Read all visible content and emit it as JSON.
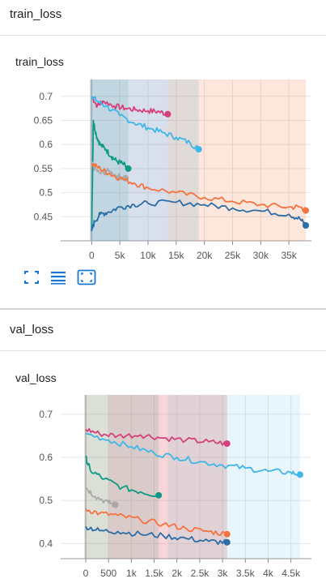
{
  "colors": {
    "orange": "#F4733F",
    "blue": "#2D6DA6",
    "pink": "#D6407A",
    "cyan": "#3FB7E6",
    "teal": "#0E9A85",
    "gray": "#A9A9A9"
  },
  "section_train": {
    "header_title": "train_loss",
    "card_title": "train_loss",
    "toolbar": {
      "fit_icon": "fit-domain-icon",
      "data_icon": "toggle-data-icon",
      "log_icon": "fit-to-data-icon"
    }
  },
  "section_val": {
    "header_title": "val_loss",
    "card_title": "val_loss"
  },
  "chart_data": [
    {
      "type": "line",
      "title": "train_loss",
      "xlabel": "",
      "ylabel": "",
      "xlim": [
        -5500,
        39000
      ],
      "ylim": [
        0.4,
        0.735
      ],
      "grid": true,
      "x_ticks": [
        0,
        5000,
        10000,
        15000,
        20000,
        25000,
        30000,
        35000
      ],
      "x_tick_labels": [
        "0",
        "5k",
        "10k",
        "15k",
        "20k",
        "25k",
        "30k",
        "35k"
      ],
      "y_ticks": [
        0.45,
        0.5,
        0.55,
        0.6,
        0.65,
        0.7
      ],
      "y_tick_labels": [
        "0.45",
        "0.5",
        "0.55",
        "0.6",
        "0.65",
        "0.7"
      ],
      "series": [
        {
          "color_key": "pink",
          "x": [
            0,
            1000,
            2000,
            4000,
            6000,
            8000,
            10000,
            12000,
            13500
          ],
          "y": [
            0.7,
            0.68,
            0.69,
            0.68,
            0.675,
            0.672,
            0.67,
            0.668,
            0.663
          ]
        },
        {
          "color_key": "cyan",
          "x": [
            0,
            1000,
            2500,
            5000,
            7500,
            10000,
            12500,
            15000,
            17500,
            19000
          ],
          "y": [
            0.7,
            0.69,
            0.68,
            0.66,
            0.645,
            0.635,
            0.625,
            0.615,
            0.603,
            0.59
          ]
        },
        {
          "color_key": "teal",
          "x": [
            0,
            300,
            800,
            1500,
            2500,
            3500,
            4500,
            5500,
            6500
          ],
          "y": [
            0.42,
            0.65,
            0.62,
            0.6,
            0.59,
            0.575,
            0.565,
            0.56,
            0.55
          ]
        },
        {
          "color_key": "gray",
          "x": [
            0,
            500,
            1500,
            3000,
            4500,
            6000
          ],
          "y": [
            0.56,
            0.55,
            0.54,
            0.545,
            0.535,
            0.53
          ]
        },
        {
          "color_key": "orange",
          "x": [
            0,
            1500,
            3000,
            5000,
            7500,
            10000,
            15000,
            20000,
            25000,
            30000,
            35000,
            37000,
            38000
          ],
          "y": [
            0.56,
            0.55,
            0.54,
            0.53,
            0.52,
            0.51,
            0.5,
            0.49,
            0.482,
            0.475,
            0.47,
            0.47,
            0.463
          ]
        },
        {
          "color_key": "blue",
          "x": [
            0,
            500,
            1500,
            3000,
            5000,
            7500,
            10000,
            15000,
            20000,
            25000,
            30000,
            35000,
            37000,
            38000
          ],
          "y": [
            0.42,
            0.44,
            0.455,
            0.46,
            0.47,
            0.475,
            0.478,
            0.48,
            0.475,
            0.468,
            0.462,
            0.455,
            0.445,
            0.432
          ]
        }
      ]
    },
    {
      "type": "line",
      "title": "val_loss",
      "xlabel": "",
      "ylabel": "",
      "xlim": [
        -550,
        4950
      ],
      "ylim": [
        0.365,
        0.745
      ],
      "grid": true,
      "x_ticks": [
        0,
        500,
        1000,
        1500,
        2000,
        2500,
        3000,
        3500,
        4000,
        4500
      ],
      "x_tick_labels": [
        "0",
        "500",
        "1k",
        "1.5k",
        "2k",
        "2.5k",
        "3k",
        "3.5k",
        "4k",
        "4.5k"
      ],
      "y_ticks": [
        0.4,
        0.5,
        0.6,
        0.7
      ],
      "y_tick_labels": [
        "0.4",
        "0.5",
        "0.6",
        "0.7"
      ],
      "series": [
        {
          "color_key": "pink",
          "x": [
            0,
            300,
            700,
            1200,
            1700,
            2200,
            2700,
            3100
          ],
          "y": [
            0.665,
            0.655,
            0.65,
            0.652,
            0.645,
            0.64,
            0.636,
            0.632
          ]
        },
        {
          "color_key": "cyan",
          "x": [
            0,
            500,
            1000,
            1500,
            2000,
            2500,
            3000,
            3500,
            4000,
            4500,
            4700
          ],
          "y": [
            0.655,
            0.64,
            0.625,
            0.61,
            0.6,
            0.59,
            0.582,
            0.575,
            0.568,
            0.565,
            0.56
          ]
        },
        {
          "color_key": "teal",
          "x": [
            0,
            100,
            400,
            800,
            1200,
            1600
          ],
          "y": [
            0.6,
            0.57,
            0.55,
            0.53,
            0.52,
            0.512
          ]
        },
        {
          "color_key": "gray",
          "x": [
            0,
            200,
            500,
            650
          ],
          "y": [
            0.53,
            0.51,
            0.495,
            0.49
          ]
        },
        {
          "color_key": "orange",
          "x": [
            0,
            300,
            700,
            1200,
            1700,
            2200,
            2700,
            3100
          ],
          "y": [
            0.48,
            0.47,
            0.465,
            0.455,
            0.445,
            0.435,
            0.428,
            0.422
          ]
        },
        {
          "color_key": "blue",
          "x": [
            0,
            300,
            700,
            1200,
            1700,
            2200,
            2700,
            3100
          ],
          "y": [
            0.44,
            0.43,
            0.428,
            0.422,
            0.418,
            0.412,
            0.405,
            0.403
          ]
        }
      ]
    }
  ]
}
